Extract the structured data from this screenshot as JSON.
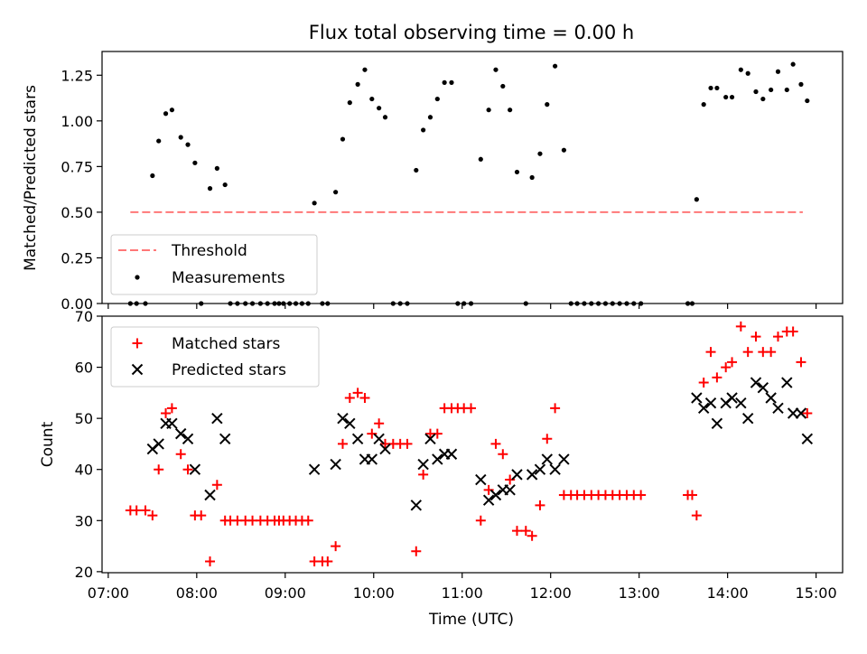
{
  "chart_data": {
    "type": "scatter",
    "title": "Flux total observing time = 0.00 h",
    "xlabel": "Time (UTC)",
    "x_unit": "hours UTC",
    "xlim": [
      6.93,
      15.3
    ],
    "x_ticks": [
      {
        "value": 7,
        "label": "07:00"
      },
      {
        "value": 8,
        "label": "08:00"
      },
      {
        "value": 9,
        "label": "09:00"
      },
      {
        "value": 10,
        "label": "10:00"
      },
      {
        "value": 11,
        "label": "11:00"
      },
      {
        "value": 12,
        "label": "12:00"
      },
      {
        "value": 13,
        "label": "13:00"
      },
      {
        "value": 14,
        "label": "14:00"
      },
      {
        "value": 15,
        "label": "15:00"
      }
    ],
    "top": {
      "ylabel": "Matched/Predicted stars",
      "ylim": [
        0,
        1.38
      ],
      "y_ticks": [
        {
          "value": 0,
          "label": "0.00"
        },
        {
          "value": 0.25,
          "label": "0.25"
        },
        {
          "value": 0.5,
          "label": "0.50"
        },
        {
          "value": 0.75,
          "label": "0.75"
        },
        {
          "value": 1.0,
          "label": "1.00"
        },
        {
          "value": 1.25,
          "label": "1.25"
        }
      ],
      "legend": {
        "position": "lower-left",
        "entries": [
          "Threshold",
          "Measurements"
        ]
      },
      "threshold": {
        "name": "Threshold",
        "y": 0.5,
        "x_range": [
          7.25,
          14.85
        ],
        "color": "#ff7777"
      },
      "measurements": {
        "name": "Measurements",
        "color": "#000000",
        "points": [
          [
            7.25,
            0
          ],
          [
            7.32,
            0
          ],
          [
            7.42,
            0
          ],
          [
            7.5,
            0.7
          ],
          [
            7.57,
            0.89
          ],
          [
            7.65,
            1.04
          ],
          [
            7.72,
            1.06
          ],
          [
            7.82,
            0.91
          ],
          [
            7.9,
            0.87
          ],
          [
            7.98,
            0.77
          ],
          [
            8.05,
            0
          ],
          [
            8.15,
            0.63
          ],
          [
            8.23,
            0.74
          ],
          [
            8.32,
            0.65
          ],
          [
            8.38,
            0
          ],
          [
            8.46,
            0
          ],
          [
            8.55,
            0
          ],
          [
            8.63,
            0
          ],
          [
            8.72,
            0
          ],
          [
            8.8,
            0
          ],
          [
            8.88,
            0
          ],
          [
            8.93,
            0
          ],
          [
            8.98,
            0
          ],
          [
            9.05,
            0
          ],
          [
            9.12,
            0
          ],
          [
            9.19,
            0
          ],
          [
            9.26,
            0
          ],
          [
            9.33,
            0.55
          ],
          [
            9.42,
            0
          ],
          [
            9.48,
            0
          ],
          [
            9.57,
            0.61
          ],
          [
            9.65,
            0.9
          ],
          [
            9.73,
            1.1
          ],
          [
            9.82,
            1.2
          ],
          [
            9.9,
            1.28
          ],
          [
            9.98,
            1.12
          ],
          [
            10.06,
            1.07
          ],
          [
            10.13,
            1.02
          ],
          [
            10.22,
            0
          ],
          [
            10.3,
            0
          ],
          [
            10.38,
            0
          ],
          [
            10.48,
            0.73
          ],
          [
            10.56,
            0.95
          ],
          [
            10.64,
            1.02
          ],
          [
            10.72,
            1.12
          ],
          [
            10.8,
            1.21
          ],
          [
            10.88,
            1.21
          ],
          [
            10.95,
            0
          ],
          [
            11.02,
            0
          ],
          [
            11.1,
            0
          ],
          [
            11.21,
            0.79
          ],
          [
            11.3,
            1.06
          ],
          [
            11.38,
            1.28
          ],
          [
            11.46,
            1.19
          ],
          [
            11.54,
            1.06
          ],
          [
            11.62,
            0.72
          ],
          [
            11.72,
            0
          ],
          [
            11.79,
            0.69
          ],
          [
            11.88,
            0.82
          ],
          [
            11.96,
            1.09
          ],
          [
            12.05,
            1.3
          ],
          [
            12.15,
            0.84
          ],
          [
            12.23,
            0
          ],
          [
            12.3,
            0
          ],
          [
            12.38,
            0
          ],
          [
            12.46,
            0
          ],
          [
            12.54,
            0
          ],
          [
            12.62,
            0
          ],
          [
            12.7,
            0
          ],
          [
            12.78,
            0
          ],
          [
            12.86,
            0
          ],
          [
            12.94,
            0
          ],
          [
            13.02,
            0
          ],
          [
            13.55,
            0
          ],
          [
            13.6,
            0
          ],
          [
            13.65,
            0.57
          ],
          [
            13.73,
            1.09
          ],
          [
            13.81,
            1.18
          ],
          [
            13.88,
            1.18
          ],
          [
            13.98,
            1.13
          ],
          [
            14.05,
            1.13
          ],
          [
            14.15,
            1.28
          ],
          [
            14.23,
            1.26
          ],
          [
            14.32,
            1.16
          ],
          [
            14.4,
            1.12
          ],
          [
            14.49,
            1.17
          ],
          [
            14.57,
            1.27
          ],
          [
            14.67,
            1.17
          ],
          [
            14.74,
            1.31
          ],
          [
            14.83,
            1.2
          ],
          [
            14.9,
            1.11
          ]
        ]
      }
    },
    "bottom": {
      "ylabel": "Count",
      "ylim": [
        19.8,
        70
      ],
      "y_ticks": [
        {
          "value": 20,
          "label": "20"
        },
        {
          "value": 30,
          "label": "30"
        },
        {
          "value": 40,
          "label": "40"
        },
        {
          "value": 50,
          "label": "50"
        },
        {
          "value": 60,
          "label": "60"
        },
        {
          "value": 70,
          "label": "70"
        }
      ],
      "legend": {
        "position": "top-left",
        "entries": [
          "Matched stars",
          "Predicted stars"
        ]
      },
      "series": [
        {
          "name": "Matched stars",
          "marker": "plus",
          "color": "#ff0000",
          "points": [
            [
              7.25,
              32
            ],
            [
              7.32,
              32
            ],
            [
              7.42,
              32
            ],
            [
              7.5,
              31
            ],
            [
              7.57,
              40
            ],
            [
              7.65,
              51
            ],
            [
              7.72,
              52
            ],
            [
              7.82,
              43
            ],
            [
              7.9,
              40
            ],
            [
              7.98,
              31
            ],
            [
              8.05,
              31
            ],
            [
              8.15,
              22
            ],
            [
              8.23,
              37
            ],
            [
              8.32,
              30
            ],
            [
              8.38,
              30
            ],
            [
              8.46,
              30
            ],
            [
              8.55,
              30
            ],
            [
              8.63,
              30
            ],
            [
              8.72,
              30
            ],
            [
              8.8,
              30
            ],
            [
              8.88,
              30
            ],
            [
              8.93,
              30
            ],
            [
              8.98,
              30
            ],
            [
              9.05,
              30
            ],
            [
              9.12,
              30
            ],
            [
              9.19,
              30
            ],
            [
              9.26,
              30
            ],
            [
              9.33,
              22
            ],
            [
              9.42,
              22
            ],
            [
              9.48,
              22
            ],
            [
              9.57,
              25
            ],
            [
              9.65,
              45
            ],
            [
              9.73,
              54
            ],
            [
              9.82,
              55
            ],
            [
              9.9,
              54
            ],
            [
              9.98,
              47
            ],
            [
              10.06,
              49
            ],
            [
              10.13,
              45
            ],
            [
              10.22,
              45
            ],
            [
              10.3,
              45
            ],
            [
              10.38,
              45
            ],
            [
              10.48,
              24
            ],
            [
              10.56,
              39
            ],
            [
              10.64,
              47
            ],
            [
              10.72,
              47
            ],
            [
              10.8,
              52
            ],
            [
              10.88,
              52
            ],
            [
              10.95,
              52
            ],
            [
              11.02,
              52
            ],
            [
              11.1,
              52
            ],
            [
              11.21,
              30
            ],
            [
              11.3,
              36
            ],
            [
              11.38,
              45
            ],
            [
              11.46,
              43
            ],
            [
              11.54,
              38
            ],
            [
              11.62,
              28
            ],
            [
              11.72,
              28
            ],
            [
              11.79,
              27
            ],
            [
              11.88,
              33
            ],
            [
              11.96,
              46
            ],
            [
              12.05,
              52
            ],
            [
              12.15,
              35
            ],
            [
              12.23,
              35
            ],
            [
              12.3,
              35
            ],
            [
              12.38,
              35
            ],
            [
              12.46,
              35
            ],
            [
              12.54,
              35
            ],
            [
              12.62,
              35
            ],
            [
              12.7,
              35
            ],
            [
              12.78,
              35
            ],
            [
              12.86,
              35
            ],
            [
              12.94,
              35
            ],
            [
              13.02,
              35
            ],
            [
              13.55,
              35
            ],
            [
              13.6,
              35
            ],
            [
              13.65,
              31
            ],
            [
              13.73,
              57
            ],
            [
              13.81,
              63
            ],
            [
              13.88,
              58
            ],
            [
              13.98,
              60
            ],
            [
              14.05,
              61
            ],
            [
              14.15,
              68
            ],
            [
              14.23,
              63
            ],
            [
              14.32,
              66
            ],
            [
              14.4,
              63
            ],
            [
              14.49,
              63
            ],
            [
              14.57,
              66
            ],
            [
              14.67,
              67
            ],
            [
              14.74,
              67
            ],
            [
              14.83,
              61
            ],
            [
              14.9,
              51
            ]
          ]
        },
        {
          "name": "Predicted stars",
          "marker": "x",
          "color": "#000000",
          "points": [
            [
              7.5,
              44
            ],
            [
              7.57,
              45
            ],
            [
              7.65,
              49
            ],
            [
              7.72,
              49
            ],
            [
              7.82,
              47
            ],
            [
              7.9,
              46
            ],
            [
              7.98,
              40
            ],
            [
              8.15,
              35
            ],
            [
              8.23,
              50
            ],
            [
              8.32,
              46
            ],
            [
              9.33,
              40
            ],
            [
              9.57,
              41
            ],
            [
              9.65,
              50
            ],
            [
              9.73,
              49
            ],
            [
              9.82,
              46
            ],
            [
              9.9,
              42
            ],
            [
              9.98,
              42
            ],
            [
              10.06,
              46
            ],
            [
              10.13,
              44
            ],
            [
              10.48,
              33
            ],
            [
              10.56,
              41
            ],
            [
              10.64,
              46
            ],
            [
              10.72,
              42
            ],
            [
              10.8,
              43
            ],
            [
              10.88,
              43
            ],
            [
              11.21,
              38
            ],
            [
              11.3,
              34
            ],
            [
              11.38,
              35
            ],
            [
              11.46,
              36
            ],
            [
              11.54,
              36
            ],
            [
              11.62,
              39
            ],
            [
              11.79,
              39
            ],
            [
              11.88,
              40
            ],
            [
              11.96,
              42
            ],
            [
              12.05,
              40
            ],
            [
              12.15,
              42
            ],
            [
              13.65,
              54
            ],
            [
              13.73,
              52
            ],
            [
              13.81,
              53
            ],
            [
              13.88,
              49
            ],
            [
              13.98,
              53
            ],
            [
              14.05,
              54
            ],
            [
              14.15,
              53
            ],
            [
              14.23,
              50
            ],
            [
              14.32,
              57
            ],
            [
              14.4,
              56
            ],
            [
              14.49,
              54
            ],
            [
              14.57,
              52
            ],
            [
              14.67,
              57
            ],
            [
              14.74,
              51
            ],
            [
              14.83,
              51
            ],
            [
              14.9,
              46
            ]
          ]
        }
      ]
    }
  }
}
